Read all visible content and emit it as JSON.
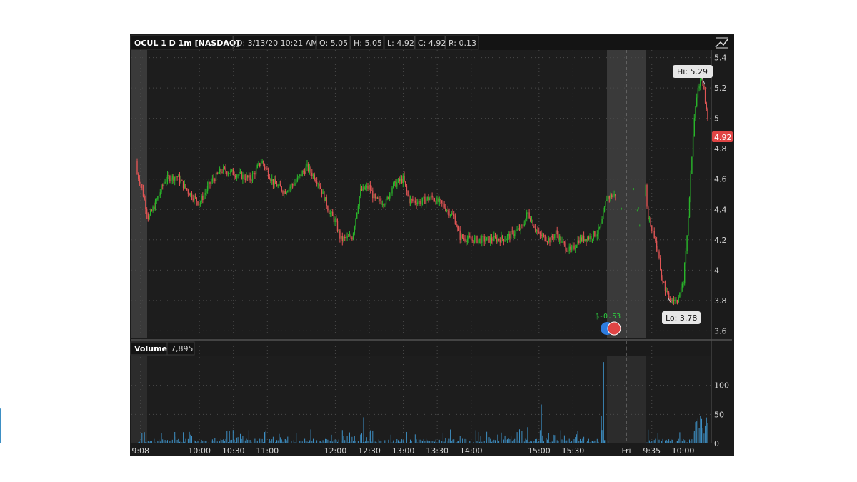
{
  "header": {
    "symbol": "OCUL 1 D 1m [NASDAQ]",
    "date": "D: 3/13/20 10:21 AM",
    "open": "O: 5.05",
    "high": "H: 5.05",
    "low": "L: 4.92",
    "close": "C: 4.92",
    "range": "R: 0.13"
  },
  "volume_header": {
    "label": "Volume",
    "value": "7,895"
  },
  "callouts": {
    "hi": "Hi: 5.29",
    "lo": "Lo: 3.78",
    "last_price": "4.92"
  },
  "event": {
    "label": "$-0.53"
  },
  "icons": [
    "chart-style-icon",
    "earnings-event-icon"
  ],
  "colors": {
    "background": "#1b1b1b",
    "grid": "#4a4a4a",
    "up": "#29b42a",
    "down": "#e05555",
    "volume": "#3d8fc4",
    "shade": "#3a3a3a",
    "price_label": "#e04545"
  },
  "chart_data": [
    {
      "type": "candlestick",
      "title": "OCUL 1 D 1m [NASDAQ]",
      "x_tick_labels": [
        "9:08",
        "10:00",
        "10:30",
        "11:00",
        "12:00",
        "12:30",
        "13:00",
        "13:30",
        "14:00",
        "15:00",
        "15:30",
        "Fri",
        "9:35",
        "10:00"
      ],
      "y_tick_labels": [
        "5.4",
        "5.2",
        "5",
        "4.8",
        "4.6",
        "4.4",
        "4.2",
        "4",
        "3.8",
        "3.6"
      ],
      "ylim": [
        3.55,
        5.45
      ],
      "grid": true,
      "high": 5.29,
      "low": 3.78,
      "last": 4.92,
      "path_points": [
        {
          "t": "9:00",
          "p": 4.72
        },
        {
          "t": "9:08",
          "p": 4.58
        },
        {
          "t": "9:15",
          "p": 4.34
        },
        {
          "t": "9:20",
          "p": 4.42
        },
        {
          "t": "9:30",
          "p": 4.6
        },
        {
          "t": "9:40",
          "p": 4.62
        },
        {
          "t": "9:50",
          "p": 4.52
        },
        {
          "t": "10:00",
          "p": 4.44
        },
        {
          "t": "10:10",
          "p": 4.58
        },
        {
          "t": "10:20",
          "p": 4.66
        },
        {
          "t": "10:30",
          "p": 4.64
        },
        {
          "t": "10:45",
          "p": 4.6
        },
        {
          "t": "10:55",
          "p": 4.72
        },
        {
          "t": "11:05",
          "p": 4.58
        },
        {
          "t": "11:15",
          "p": 4.52
        },
        {
          "t": "11:25",
          "p": 4.58
        },
        {
          "t": "11:35",
          "p": 4.68
        },
        {
          "t": "11:45",
          "p": 4.58
        },
        {
          "t": "11:55",
          "p": 4.38
        },
        {
          "t": "12:00",
          "p": 4.32
        },
        {
          "t": "12:05",
          "p": 4.2
        },
        {
          "t": "12:15",
          "p": 4.22
        },
        {
          "t": "12:22",
          "p": 4.52
        },
        {
          "t": "12:30",
          "p": 4.55
        },
        {
          "t": "12:35",
          "p": 4.46
        },
        {
          "t": "12:45",
          "p": 4.45
        },
        {
          "t": "12:50",
          "p": 4.55
        },
        {
          "t": "12:55",
          "p": 4.58
        },
        {
          "t": "13:00",
          "p": 4.6
        },
        {
          "t": "13:05",
          "p": 4.46
        },
        {
          "t": "13:15",
          "p": 4.45
        },
        {
          "t": "13:25",
          "p": 4.48
        },
        {
          "t": "13:35",
          "p": 4.43
        },
        {
          "t": "13:45",
          "p": 4.35
        },
        {
          "t": "13:50",
          "p": 4.22
        },
        {
          "t": "14:00",
          "p": 4.2
        },
        {
          "t": "14:15",
          "p": 4.2
        },
        {
          "t": "14:30",
          "p": 4.21
        },
        {
          "t": "14:45",
          "p": 4.28
        },
        {
          "t": "14:50",
          "p": 4.38
        },
        {
          "t": "15:00",
          "p": 4.23
        },
        {
          "t": "15:10",
          "p": 4.2
        },
        {
          "t": "15:15",
          "p": 4.25
        },
        {
          "t": "15:20",
          "p": 4.18
        },
        {
          "t": "15:28",
          "p": 4.12
        },
        {
          "t": "15:35",
          "p": 4.2
        },
        {
          "t": "15:45",
          "p": 4.22
        },
        {
          "t": "15:52",
          "p": 4.25
        },
        {
          "t": "15:55",
          "p": 4.3
        },
        {
          "t": "16:00",
          "p": 4.48
        },
        {
          "t": "Fri 9:30",
          "p": 4.56
        },
        {
          "t": "9:32",
          "p": 4.35
        },
        {
          "t": "9:38",
          "p": 4.2
        },
        {
          "t": "9:43",
          "p": 3.95
        },
        {
          "t": "9:48",
          "p": 3.82
        },
        {
          "t": "9:55",
          "p": 3.8
        },
        {
          "t": "10:00",
          "p": 3.9
        },
        {
          "t": "10:03",
          "p": 4.2
        },
        {
          "t": "10:06",
          "p": 4.6
        },
        {
          "t": "10:09",
          "p": 5.0
        },
        {
          "t": "10:12",
          "p": 5.2
        },
        {
          "t": "10:15",
          "p": 5.29
        },
        {
          "t": "10:18",
          "p": 5.1
        },
        {
          "t": "10:21",
          "p": 4.92
        }
      ]
    },
    {
      "type": "bar",
      "title": "Volume",
      "y_tick_labels": [
        "100",
        "50",
        "0"
      ],
      "ylim": [
        0,
        150
      ],
      "grid": true,
      "latest_value": "7,895",
      "notable_bars": [
        {
          "t": "15:57",
          "v": 140
        },
        {
          "t": "15:02",
          "v": 67
        },
        {
          "t": "15:55",
          "v": 48
        },
        {
          "t": "10:20 Fri",
          "v": 60
        },
        {
          "t": "12:25",
          "v": 45
        },
        {
          "t": "14:50",
          "v": 28
        }
      ]
    }
  ]
}
